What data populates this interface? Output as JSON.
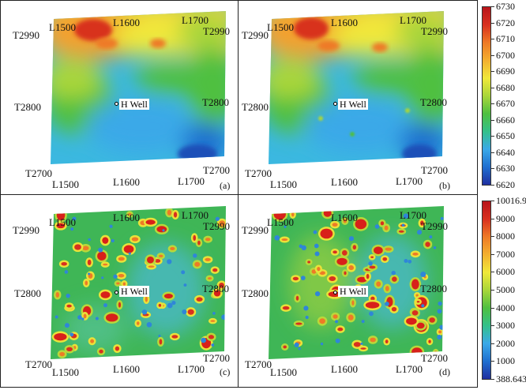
{
  "colorbars": [
    {
      "name": "top",
      "ticks": [
        "6730",
        "6720",
        "6710",
        "6700",
        "6690",
        "6680",
        "6670",
        "6660",
        "6650",
        "6640",
        "6630",
        "6620"
      ],
      "colors": [
        "#1f2fa0",
        "#1f6fd0",
        "#3aa9e8",
        "#33c08a",
        "#4fc040",
        "#a9d63a",
        "#f0e83a",
        "#f3b030",
        "#ee7a26",
        "#d8301f",
        "#b8141a"
      ]
    },
    {
      "name": "bottom",
      "ticks": [
        "10016.9",
        "9000",
        "8000",
        "7000",
        "6000",
        "5000",
        "4000",
        "3000",
        "2000",
        "1000",
        "388.643"
      ],
      "colors": [
        "#1f2fa0",
        "#1f6fd0",
        "#3aa9e8",
        "#33c08a",
        "#4fc040",
        "#a9d63a",
        "#f0e83a",
        "#f3b030",
        "#ee7a26",
        "#d8301f",
        "#b8141a"
      ]
    }
  ],
  "panels": [
    {
      "id": "a",
      "tag": "(a)",
      "tl_line": "L1500",
      "tm_line": "L1600",
      "tr_line": "L1700",
      "l_top": "T2990",
      "r_top": "T2990",
      "l_mid": "T2800",
      "r_mid": "T2800",
      "l_bot": "T2700",
      "r_bot": "T2700",
      "bl_line": "L1500",
      "bm_line": "L1600",
      "br_line": "L1700",
      "well": "H Well"
    },
    {
      "id": "b",
      "tag": "(b)",
      "tl_line": "L1500",
      "tm_line": "L1600",
      "tr_line": "L1700",
      "l_top": "T2990",
      "r_top": "T2990",
      "l_mid": "T2800",
      "r_mid": "T2800",
      "l_bot": "T2700",
      "r_bot": "T2700",
      "bl_line": "L1500",
      "bm_line": "L1600",
      "br_line": "L1700",
      "well": "H Well"
    },
    {
      "id": "c",
      "tag": "(c)",
      "tl_line": "L1500",
      "tm_line": "L1600",
      "tr_line": "L1700",
      "l_top": "T2990",
      "r_top": "T2990",
      "l_mid": "T2800",
      "r_mid": "T2800",
      "l_bot": "T2700",
      "r_bot": "T2700",
      "bl_line": "L1500",
      "bm_line": "L1600",
      "br_line": "L1700",
      "well": "H Well"
    },
    {
      "id": "d",
      "tag": "(d)",
      "tl_line": "L1500",
      "tm_line": "L1600",
      "tr_line": "L1700",
      "l_top": "T2990",
      "r_top": "T2990",
      "l_mid": "T2800",
      "r_mid": "T2800",
      "l_bot": "T2700",
      "r_bot": "T2700",
      "bl_line": "L1500",
      "bm_line": "L1600",
      "br_line": "L1700",
      "well": "H Well"
    }
  ]
}
